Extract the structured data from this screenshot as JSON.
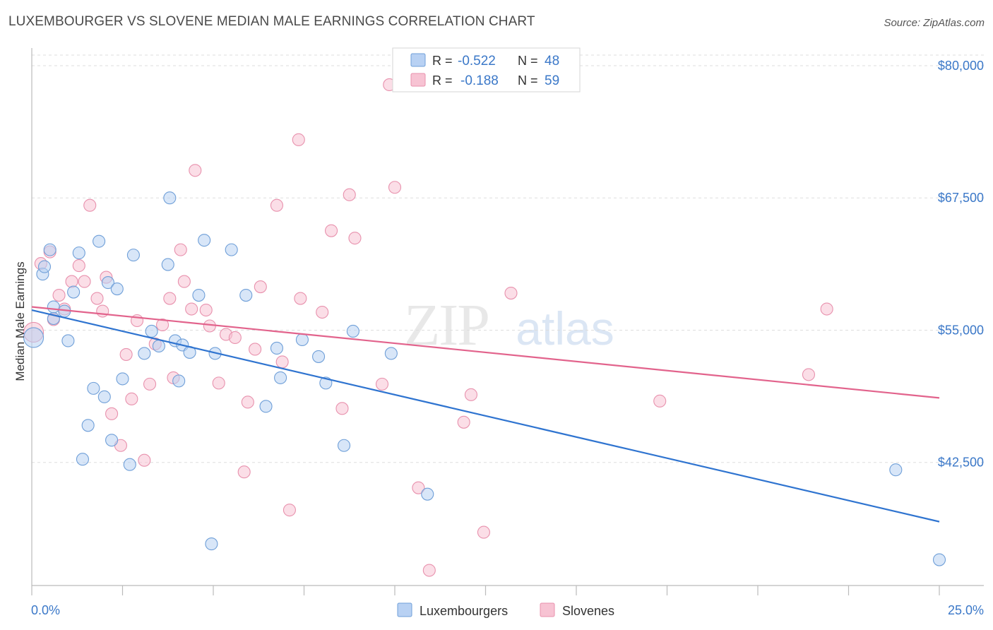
{
  "header": {
    "title": "LUXEMBOURGER VS SLOVENE MEDIAN MALE EARNINGS CORRELATION CHART",
    "source": "Source: ZipAtlas.com"
  },
  "watermark": {
    "zip": "ZIP",
    "atlas": "atlas"
  },
  "legend_box": {
    "rows": [
      {
        "r_label": "R =",
        "r_value": "-0.522",
        "n_label": "N =",
        "n_value": "48"
      },
      {
        "r_label": "R =",
        "r_value": "-0.188",
        "n_label": "N =",
        "n_value": "59"
      }
    ]
  },
  "bottom_legend": {
    "items": [
      "Luxembourgers",
      "Slovenes"
    ]
  },
  "colors": {
    "blue_fill": "#b8d1f3",
    "blue_stroke": "#6f9fd8",
    "blue_line": "#2f74d0",
    "pink_fill": "#f7c3d3",
    "pink_stroke": "#e891ad",
    "pink_line": "#e2638c",
    "value_text": "#3b78c8",
    "grid": "#dddddd"
  },
  "chart_data": {
    "type": "scatter",
    "title": "LUXEMBOURGER VS SLOVENE MEDIAN MALE EARNINGS CORRELATION CHART",
    "xlabel": "",
    "ylabel": "Median Male Earnings",
    "xlim": [
      0,
      25
    ],
    "ylim": [
      31000,
      81000
    ],
    "x_tick_labels": [
      "0.0%",
      "25.0%"
    ],
    "y_ticks": [
      42500,
      55000,
      67500,
      80000
    ],
    "y_tick_labels": [
      "$42,500",
      "$55,000",
      "$67,500",
      "$80,000"
    ],
    "grid": true,
    "legend_position": "top-center",
    "series": [
      {
        "name": "Luxembourgers",
        "color": "#b8d1f3",
        "r": -0.522,
        "n": 48,
        "trend": {
          "x": [
            0,
            25
          ],
          "y": [
            56900,
            36900
          ]
        },
        "points": [
          [
            0.05,
            54300
          ],
          [
            0.3,
            60300
          ],
          [
            0.35,
            61000
          ],
          [
            0.5,
            62600
          ],
          [
            0.6,
            57200
          ],
          [
            0.6,
            56100
          ],
          [
            0.9,
            56800
          ],
          [
            1.0,
            54000
          ],
          [
            1.15,
            58600
          ],
          [
            1.3,
            62300
          ],
          [
            1.4,
            42800
          ],
          [
            1.55,
            46000
          ],
          [
            1.7,
            49500
          ],
          [
            1.85,
            63400
          ],
          [
            2.0,
            48700
          ],
          [
            2.1,
            59500
          ],
          [
            2.2,
            44600
          ],
          [
            2.35,
            58900
          ],
          [
            2.5,
            50400
          ],
          [
            2.7,
            42300
          ],
          [
            2.8,
            62100
          ],
          [
            3.1,
            52800
          ],
          [
            3.3,
            54900
          ],
          [
            3.5,
            53500
          ],
          [
            3.75,
            61200
          ],
          [
            3.8,
            67500
          ],
          [
            3.95,
            54000
          ],
          [
            4.05,
            50200
          ],
          [
            4.15,
            53600
          ],
          [
            4.35,
            52900
          ],
          [
            4.6,
            58300
          ],
          [
            4.75,
            63500
          ],
          [
            4.95,
            34800
          ],
          [
            5.05,
            52800
          ],
          [
            5.5,
            62600
          ],
          [
            5.9,
            58300
          ],
          [
            6.45,
            47800
          ],
          [
            6.75,
            53300
          ],
          [
            6.85,
            50500
          ],
          [
            7.45,
            54100
          ],
          [
            7.9,
            52500
          ],
          [
            8.1,
            50000
          ],
          [
            8.6,
            44100
          ],
          [
            8.85,
            54900
          ],
          [
            9.9,
            52800
          ],
          [
            10.9,
            39500
          ],
          [
            23.8,
            41800
          ],
          [
            25.0,
            33300
          ]
        ]
      },
      {
        "name": "Slovenes",
        "color": "#f7c3d3",
        "r": -0.188,
        "n": 59,
        "trend": {
          "x": [
            0,
            25
          ],
          "y": [
            57200,
            48600
          ]
        },
        "points": [
          [
            0.05,
            54800
          ],
          [
            0.25,
            61300
          ],
          [
            0.5,
            62400
          ],
          [
            0.6,
            56000
          ],
          [
            0.75,
            58300
          ],
          [
            0.9,
            57000
          ],
          [
            1.1,
            59600
          ],
          [
            1.3,
            61100
          ],
          [
            1.45,
            59600
          ],
          [
            1.6,
            66800
          ],
          [
            1.8,
            58000
          ],
          [
            1.95,
            56800
          ],
          [
            2.05,
            60000
          ],
          [
            2.2,
            47100
          ],
          [
            2.45,
            44100
          ],
          [
            2.6,
            52700
          ],
          [
            2.75,
            48500
          ],
          [
            2.9,
            55900
          ],
          [
            3.1,
            42700
          ],
          [
            3.25,
            49900
          ],
          [
            3.4,
            53700
          ],
          [
            3.6,
            55500
          ],
          [
            3.8,
            58000
          ],
          [
            3.9,
            50500
          ],
          [
            4.1,
            62600
          ],
          [
            4.2,
            59600
          ],
          [
            4.4,
            57000
          ],
          [
            4.5,
            70100
          ],
          [
            4.8,
            56900
          ],
          [
            4.9,
            55400
          ],
          [
            5.15,
            50000
          ],
          [
            5.35,
            54600
          ],
          [
            5.6,
            54300
          ],
          [
            5.85,
            41600
          ],
          [
            5.95,
            48200
          ],
          [
            6.15,
            53200
          ],
          [
            6.3,
            59100
          ],
          [
            6.75,
            66800
          ],
          [
            6.9,
            52000
          ],
          [
            7.1,
            38000
          ],
          [
            7.35,
            73000
          ],
          [
            7.4,
            58000
          ],
          [
            8.0,
            56700
          ],
          [
            8.25,
            64400
          ],
          [
            8.55,
            47600
          ],
          [
            8.75,
            67800
          ],
          [
            8.9,
            63700
          ],
          [
            9.65,
            49900
          ],
          [
            9.85,
            78200
          ],
          [
            10.0,
            68500
          ],
          [
            10.65,
            40100
          ],
          [
            10.95,
            32300
          ],
          [
            11.9,
            46300
          ],
          [
            12.1,
            48900
          ],
          [
            12.45,
            35900
          ],
          [
            13.2,
            58500
          ],
          [
            17.3,
            48300
          ],
          [
            21.4,
            50800
          ],
          [
            21.9,
            57000
          ]
        ]
      }
    ]
  }
}
